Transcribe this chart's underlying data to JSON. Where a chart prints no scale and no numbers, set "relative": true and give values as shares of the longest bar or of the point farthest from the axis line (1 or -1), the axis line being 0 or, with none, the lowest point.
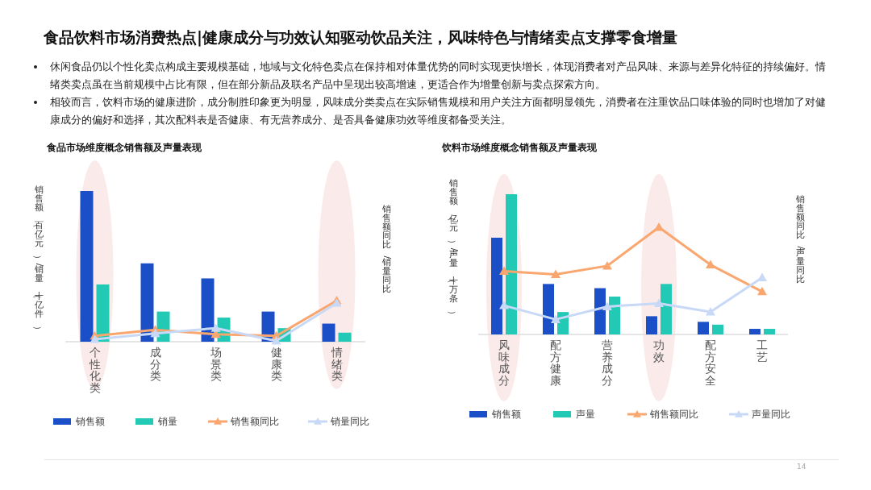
{
  "chart_data": [
    {
      "type": "other",
      "title": "食品饮料市场消费热点|健康成分与功效认知驱动饮品关注，风味特色与情绪卖点支撑零食增量",
      "annotations": [
        "休闲食品仍以个性化卖点构成主要规模基础，地域与文化特色卖点在保持相对体量优势的同时实现更快增长，体现消费者对产品风味、来源与差异化特征的持续偏好。情绪类卖点虽在当前规模中占比有限，但在部分新品及联名产品中呈现出较高增速，更适合作为增量创新与卖点探索方向。",
        "相较而言，饮料市场的健康进阶，成分制胜印象更为明显，风味成分类卖点在实际销售规模和用户关注方面都明显领先，消费者在注重饮品口味体验的同时也增加了对健康成分的偏好和选择，其次配料表是否健康、有无营养成分、是否具备健康功效等维度都备受关注。",
        "14"
      ]
    },
    {
      "type": "bar",
      "title": "食品市场维度概念销售额及声量表现",
      "ylabel": "销售额（百亿元）/销量（十亿件）",
      "y2label": "销售额同比/销量同比",
      "categories": [
        "个性化类",
        "成分类",
        "场景类",
        "健康类",
        "情绪类"
      ],
      "relative": true,
      "legend": "bottom",
      "marker": "triangle",
      "series": [
        {
          "name": "销售额",
          "type": "bar",
          "color": "#1a4fc8",
          "values": [
            1,
            0.52,
            0.42,
            0.2,
            0.12
          ]
        },
        {
          "name": "销量",
          "type": "bar",
          "color": "#22c9b5",
          "values": [
            0.38,
            0.2,
            0.16,
            0.09,
            0.06
          ]
        },
        {
          "name": "销售额同比",
          "type": "line",
          "axis": "y2",
          "color": "#f9a66f",
          "values": [
            0.14,
            0.29,
            0.18,
            0.14,
            1
          ]
        },
        {
          "name": "销量同比",
          "type": "line",
          "axis": "y2",
          "color": "#c8d9f7",
          "values": [
            0.06,
            0.2,
            0.33,
            0.02,
            0.94
          ]
        }
      ]
    },
    {
      "type": "bar",
      "title": "饮料市场维度概念销售额及声量表现",
      "ylabel": "销售额（亿元）/声量（十万条）",
      "y2label": "销售额同比/声量同比",
      "categories": [
        "风味成分",
        "配方健康",
        "营养成分",
        "功效",
        "配方安全",
        "工艺"
      ],
      "relative": true,
      "legend": "bottom",
      "marker": "triangle",
      "series": [
        {
          "name": "销售额",
          "type": "bar",
          "color": "#1a4fc8",
          "values": [
            0.69,
            0.36,
            0.33,
            0.13,
            0.09,
            0.04
          ]
        },
        {
          "name": "声量",
          "type": "bar",
          "color": "#22c9b5",
          "values": [
            1,
            0.16,
            0.27,
            0.36,
            0.07,
            0.04
          ]
        },
        {
          "name": "销售额同比",
          "type": "line",
          "axis": "y2",
          "color": "#f9a66f",
          "values": [
            0.59,
            0.56,
            0.64,
            1,
            0.65,
            0.4
          ]
        },
        {
          "name": "声量同比",
          "type": "line",
          "axis": "y2",
          "color": "#c8d9f7",
          "values": [
            0.27,
            0.14,
            0.26,
            0.29,
            0.21,
            0.53
          ]
        }
      ]
    }
  ]
}
